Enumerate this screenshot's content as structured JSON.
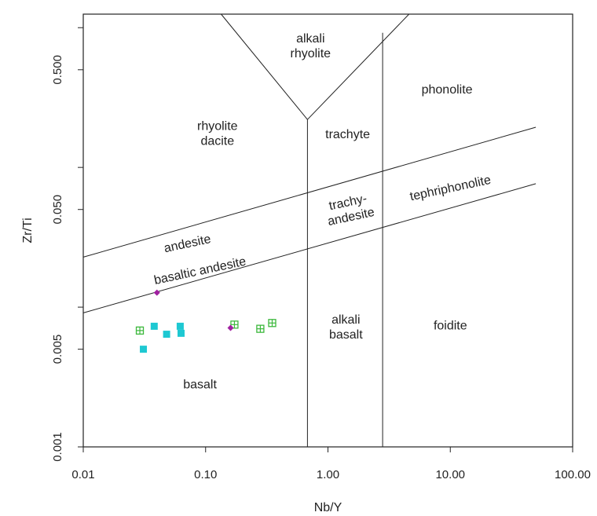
{
  "chart_data": {
    "type": "scatter",
    "title": "",
    "xlabel": "Nb/Y",
    "ylabel": "Zr/Ti",
    "xscale": "log",
    "yscale": "log",
    "xlim": [
      0.01,
      100
    ],
    "ylim": [
      0.001,
      1.25
    ],
    "grid": false,
    "x_ticks": [
      {
        "value": 0.01,
        "label": "0.01"
      },
      {
        "value": 0.1,
        "label": "0.10"
      },
      {
        "value": 1,
        "label": "1.00"
      },
      {
        "value": 10,
        "label": "10.00"
      },
      {
        "value": 100,
        "label": "100.00"
      }
    ],
    "y_ticks": [
      {
        "value": 0.001,
        "label": "0.001"
      },
      {
        "value": 0.005,
        "label": "0.005"
      },
      {
        "value": 0.01,
        "label": ""
      },
      {
        "value": 0.05,
        "label": "0.050"
      },
      {
        "value": 0.1,
        "label": ""
      },
      {
        "value": 0.5,
        "label": "0.500"
      },
      {
        "value": 1,
        "label": ""
      }
    ],
    "boundaries": [
      {
        "points": [
          [
            0.01,
            0.0228
          ],
          [
            50,
            0.194
          ]
        ]
      },
      {
        "points": [
          [
            0.01,
            0.0091
          ],
          [
            50,
            0.0765
          ]
        ]
      },
      {
        "points": [
          [
            0.68,
            0.001
          ],
          [
            0.68,
            0.22
          ]
        ]
      },
      {
        "points": [
          [
            2.8,
            0.001
          ],
          [
            2.8,
            0.92
          ]
        ]
      },
      {
        "points": [
          [
            0.68,
            0.22
          ],
          [
            0.134,
            1.25
          ]
        ]
      },
      {
        "points": [
          [
            0.68,
            0.22
          ],
          [
            4.6,
            1.25
          ]
        ]
      }
    ],
    "fields": [
      {
        "lines": [
          "alkali",
          "rhyolite"
        ],
        "x": 0.72,
        "y": 0.74,
        "rotate": 0
      },
      {
        "lines": [
          "phonolite"
        ],
        "x": 9.4,
        "y": 0.36,
        "rotate": 0
      },
      {
        "lines": [
          "rhyolite",
          "dacite"
        ],
        "x": 0.125,
        "y": 0.175,
        "rotate": 0
      },
      {
        "lines": [
          "trachyte"
        ],
        "x": 1.45,
        "y": 0.173,
        "rotate": 0
      },
      {
        "lines": [
          "tephriphonolite"
        ],
        "x": 10,
        "y": 0.071,
        "rotate": -12
      },
      {
        "lines": [
          "trachy-",
          "andesite"
        ],
        "x": 1.5,
        "y": 0.05,
        "rotate": -12
      },
      {
        "lines": [
          "andesite"
        ],
        "x": 0.071,
        "y": 0.0285,
        "rotate": -12
      },
      {
        "lines": [
          "basaltic andesite"
        ],
        "x": 0.09,
        "y": 0.0182,
        "rotate": -12
      },
      {
        "lines": [
          "alkali",
          "basalt"
        ],
        "x": 1.4,
        "y": 0.0072,
        "rotate": 0
      },
      {
        "lines": [
          "foidite"
        ],
        "x": 10,
        "y": 0.0074,
        "rotate": 0
      },
      {
        "lines": [
          "basalt"
        ],
        "x": 0.09,
        "y": 0.0028,
        "rotate": 0
      }
    ],
    "series": [
      {
        "marker": "filled-square",
        "color": "#1ec8d2",
        "points": [
          [
            0.038,
            0.0073
          ],
          [
            0.062,
            0.0073
          ],
          [
            0.048,
            0.0064
          ],
          [
            0.063,
            0.0065
          ],
          [
            0.031,
            0.005
          ]
        ]
      },
      {
        "marker": "crossed-square",
        "color": "#3cb83c",
        "points": [
          [
            0.029,
            0.0068
          ],
          [
            0.172,
            0.0075
          ],
          [
            0.28,
            0.007
          ],
          [
            0.35,
            0.0077
          ]
        ]
      },
      {
        "marker": "diamond",
        "color": "#a020a0",
        "points": [
          [
            0.04,
            0.0127
          ],
          [
            0.16,
            0.0071
          ]
        ]
      }
    ]
  }
}
